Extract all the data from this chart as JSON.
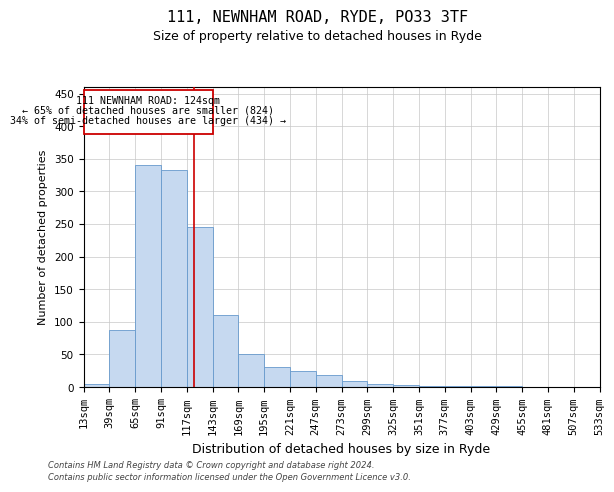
{
  "title": "111, NEWNHAM ROAD, RYDE, PO33 3TF",
  "subtitle": "Size of property relative to detached houses in Ryde",
  "xlabel": "Distribution of detached houses by size in Ryde",
  "ylabel": "Number of detached properties",
  "footer_line1": "Contains HM Land Registry data © Crown copyright and database right 2024.",
  "footer_line2": "Contains public sector information licensed under the Open Government Licence v3.0.",
  "annotation_line1": "111 NEWNHAM ROAD: 124sqm",
  "annotation_line2": "← 65% of detached houses are smaller (824)",
  "annotation_line3": "34% of semi-detached houses are larger (434) →",
  "bar_heights": [
    5,
    88,
    340,
    333,
    245,
    110,
    50,
    30,
    24,
    18,
    9,
    4,
    3,
    2,
    1,
    1,
    1,
    0,
    0,
    0
  ],
  "bar_edges": [
    13,
    39,
    65,
    91,
    117,
    143,
    169,
    195,
    221,
    247,
    273,
    299,
    325,
    351,
    377,
    403,
    429,
    455,
    481,
    507,
    533
  ],
  "bin_width": 26,
  "property_size": 124,
  "bar_color": "#c6d9f0",
  "bar_edge_color": "#6699cc",
  "vline_color": "#cc0000",
  "box_edge_color": "#cc0000",
  "background_color": "#ffffff",
  "grid_color": "#c8c8c8",
  "ylim": [
    0,
    460
  ],
  "yticks": [
    0,
    50,
    100,
    150,
    200,
    250,
    300,
    350,
    400,
    450
  ],
  "title_fontsize": 11,
  "subtitle_fontsize": 9,
  "xlabel_fontsize": 9,
  "ylabel_fontsize": 8,
  "tick_fontsize": 7.5
}
